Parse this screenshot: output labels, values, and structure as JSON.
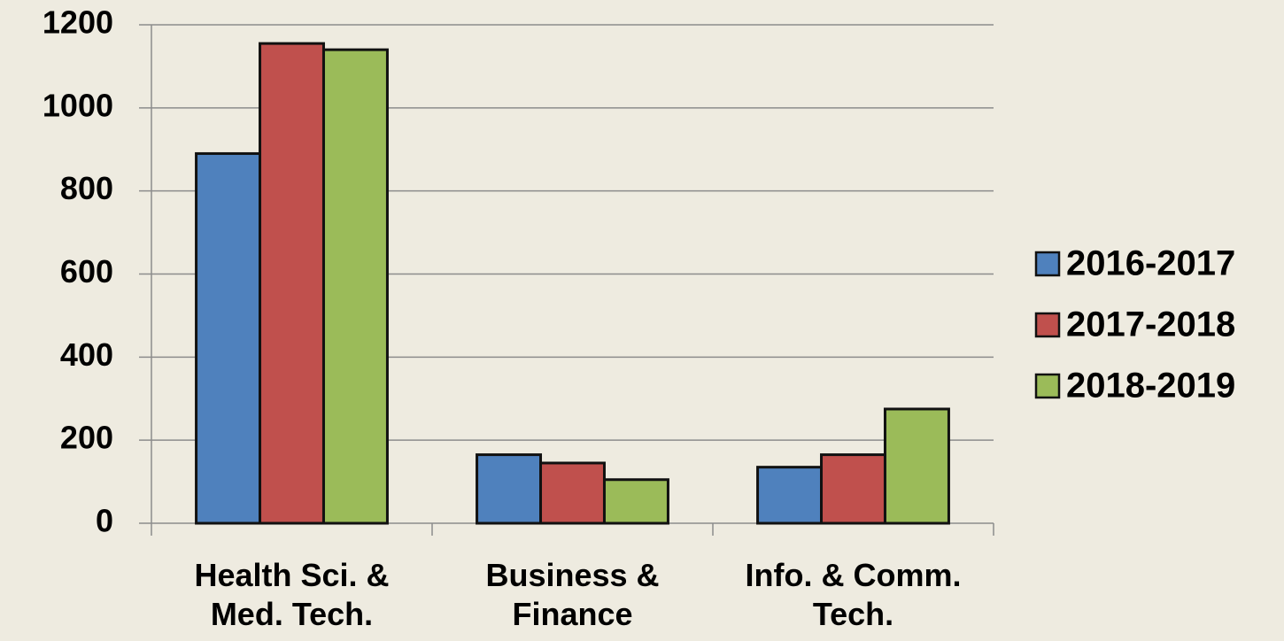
{
  "chart_data": {
    "type": "bar",
    "categories": [
      "Health Sci. & Med. Tech.",
      "Business & Finance",
      "Info. & Comm. Tech."
    ],
    "series": [
      {
        "name": "2016-2017",
        "color": "#4f81bd",
        "values": [
          890,
          165,
          135
        ]
      },
      {
        "name": "2017-2018",
        "color": "#c0504d",
        "values": [
          1155,
          145,
          165
        ]
      },
      {
        "name": "2018-2019",
        "color": "#9bbb59",
        "values": [
          1140,
          105,
          275
        ]
      }
    ],
    "ylim": [
      0,
      1200
    ],
    "yticks": [
      0,
      200,
      400,
      600,
      800,
      1000,
      1200
    ],
    "grid": true,
    "legend": "right"
  }
}
